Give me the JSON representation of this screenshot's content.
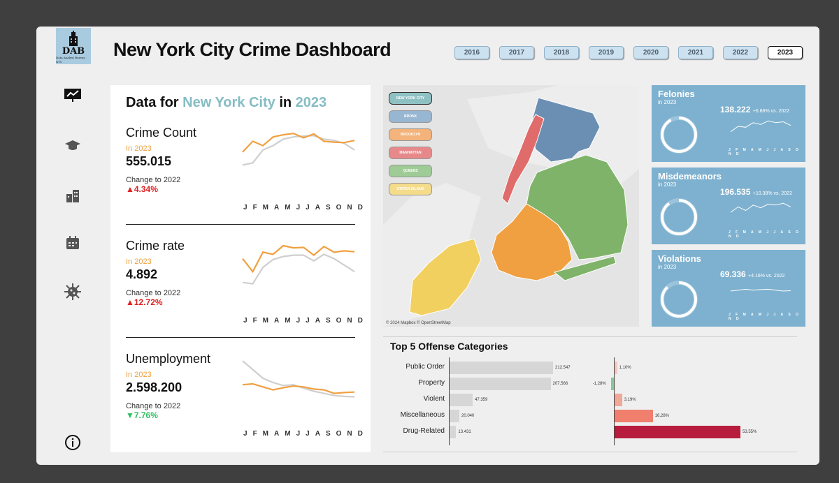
{
  "app": {
    "logo_text": "DAB",
    "logo_subtext": "Data Analyst Bureau NYC",
    "title": "New York City Crime Dashboard"
  },
  "years": [
    "2016",
    "2017",
    "2018",
    "2019",
    "2020",
    "2021",
    "2022",
    "2023"
  ],
  "selected_year": "2023",
  "sidebar": {
    "icons": [
      "presentation-icon",
      "graduation-cap-icon",
      "buildings-icon",
      "calendar-icon",
      "virus-icon"
    ],
    "info_icon": "info-icon"
  },
  "left_panel": {
    "title_prefix": "Data for ",
    "title_place": "New York City",
    "title_mid": " in ",
    "title_year": "2023",
    "months": [
      "J",
      "F",
      "M",
      "A",
      "M",
      "J",
      "J",
      "A",
      "S",
      "O",
      "N",
      "D"
    ],
    "metrics": [
      {
        "name": "Crime Count",
        "in_label": "In 2023",
        "value": "555.015",
        "change_label": "Change to 2022",
        "change": "▲4.34%",
        "direction": "up",
        "series_2023": [
          0.55,
          0.8,
          0.7,
          0.9,
          0.95,
          0.98,
          0.88,
          0.97,
          0.8,
          0.78,
          0.77,
          0.82
        ],
        "series_2022": [
          0.25,
          0.3,
          0.6,
          0.7,
          0.85,
          0.9,
          0.92,
          0.93,
          0.85,
          0.82,
          0.75,
          0.6
        ]
      },
      {
        "name": "Crime rate",
        "in_label": "In 2023",
        "value": "4.892",
        "change_label": "Change to 2022",
        "change": "▲12.72%",
        "direction": "up",
        "series_2023": [
          0.7,
          0.4,
          0.85,
          0.8,
          1.0,
          0.95,
          0.96,
          0.78,
          0.98,
          0.85,
          0.88,
          0.86
        ],
        "series_2022": [
          0.15,
          0.12,
          0.5,
          0.68,
          0.75,
          0.78,
          0.78,
          0.65,
          0.8,
          0.7,
          0.55,
          0.4
        ],
        "_dummy": null
      },
      {
        "name": "Unemployment",
        "in_label": "In 2023",
        "value": "2.598.200",
        "change_label": "Change to 2022",
        "change": "▼7.76%",
        "direction": "down",
        "series_2023": [
          0.4,
          0.42,
          0.35,
          0.28,
          0.33,
          0.37,
          0.35,
          0.3,
          0.28,
          0.2,
          0.22,
          0.23
        ],
        "series_2022": [
          0.95,
          0.75,
          0.55,
          0.45,
          0.38,
          0.4,
          0.32,
          0.25,
          0.2,
          0.15,
          0.13,
          0.12
        ]
      }
    ]
  },
  "map": {
    "buttons": [
      "NEW YORK CITY",
      "BRONX",
      "BROOKLYN",
      "MANHATTAN",
      "QUEENS",
      "STATEN ISLAND"
    ],
    "button_colors": [
      "#8fc1c3",
      "#97b6d1",
      "#f3b37a",
      "#e7898a",
      "#9fcc96",
      "#f5dc8a"
    ],
    "attribution": "© 2024 Mapbox © OpenStreetMap",
    "borough_colors": {
      "bronx": "#6b8fb3",
      "manhattan": "#e06b6b",
      "queens": "#7fb36a",
      "brooklyn": "#f0a040",
      "staten_island": "#f2d060"
    }
  },
  "cards": [
    {
      "name": "Felonies",
      "in_label": "in 2023",
      "value": "138.222",
      "change": "+6.66% vs. 2022",
      "share": 0.92,
      "spark": [
        0.2,
        0.5,
        0.45,
        0.7,
        0.6,
        0.8,
        0.7,
        0.75,
        0.55
      ]
    },
    {
      "name": "Misdemeanors",
      "in_label": "in 2023",
      "value": "196.535",
      "change": "+10.38% vs. 2022",
      "share": 0.9,
      "spark": [
        0.3,
        0.6,
        0.4,
        0.7,
        0.55,
        0.75,
        0.7,
        0.8,
        0.6
      ]
    },
    {
      "name": "Violations",
      "in_label": "in 2023",
      "value": "69.336",
      "change": "+4.16% vs. 2022",
      "share": 0.88,
      "spark": [
        0.5,
        0.55,
        0.6,
        0.55,
        0.58,
        0.6,
        0.55,
        0.5,
        0.52
      ]
    }
  ],
  "card_months": "J F M A M J J A S O N D",
  "chart_data": {
    "type": "bar",
    "title": "Top 5 Offense Categories",
    "categories": [
      "Public Order",
      "Property",
      "Violent",
      "Miscellaneous",
      "Drug-Related"
    ],
    "series": [
      {
        "values": [
          212547,
          207566,
          47359,
          20040,
          13431
        ],
        "labels": [
          "212.547",
          "207.566",
          "47.359",
          "20.040",
          "13.431"
        ]
      },
      {
        "values": [
          1.1,
          -1.28,
          3.19,
          16.28,
          53.55
        ],
        "labels": [
          "1,10%",
          "-1,28%",
          "3,19%",
          "16,28%",
          "53,55%"
        ]
      }
    ],
    "pct_colors": [
      "#f4c9c0",
      "#86c89a",
      "#f0a898",
      "#f07f6e",
      "#b71c3c"
    ]
  }
}
